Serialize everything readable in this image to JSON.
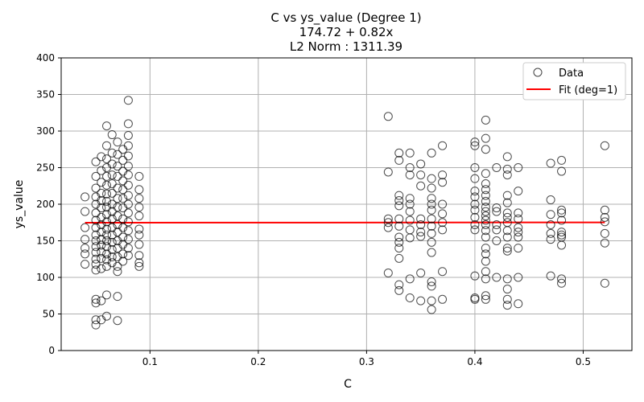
{
  "chart_data": {
    "type": "scatter",
    "title_lines": [
      "C vs ys_value (Degree 1)",
      "174.72 + 0.82x",
      "L2 Norm : 1311.39"
    ],
    "xlabel": "C",
    "ylabel": "ys_value",
    "xlim": [
      0.018,
      0.545
    ],
    "ylim": [
      0,
      400
    ],
    "xticks": [
      0.1,
      0.2,
      0.3,
      0.4,
      0.5
    ],
    "yticks": [
      0,
      50,
      100,
      150,
      200,
      250,
      300,
      350,
      400
    ],
    "grid": true,
    "legend_position": "upper-right",
    "colors": {
      "points": "#000000",
      "fit": "#ff0000",
      "grid": "#b0b0b0"
    },
    "series": [
      {
        "name": "Data",
        "kind": "scatter",
        "points": [
          [
            0.04,
            210
          ],
          [
            0.04,
            190
          ],
          [
            0.04,
            168
          ],
          [
            0.04,
            152
          ],
          [
            0.04,
            140
          ],
          [
            0.04,
            132
          ],
          [
            0.04,
            118
          ],
          [
            0.05,
            258
          ],
          [
            0.05,
            238
          ],
          [
            0.05,
            222
          ],
          [
            0.05,
            210
          ],
          [
            0.05,
            200
          ],
          [
            0.05,
            188
          ],
          [
            0.05,
            178
          ],
          [
            0.05,
            168
          ],
          [
            0.05,
            158
          ],
          [
            0.05,
            150
          ],
          [
            0.05,
            142
          ],
          [
            0.05,
            134
          ],
          [
            0.05,
            125
          ],
          [
            0.05,
            118
          ],
          [
            0.05,
            110
          ],
          [
            0.05,
            70
          ],
          [
            0.05,
            65
          ],
          [
            0.05,
            42
          ],
          [
            0.05,
            35
          ],
          [
            0.055,
            265
          ],
          [
            0.055,
            246
          ],
          [
            0.055,
            230
          ],
          [
            0.055,
            215
          ],
          [
            0.055,
            205
          ],
          [
            0.055,
            195
          ],
          [
            0.055,
            182
          ],
          [
            0.055,
            172
          ],
          [
            0.055,
            162
          ],
          [
            0.055,
            152
          ],
          [
            0.055,
            144
          ],
          [
            0.055,
            135
          ],
          [
            0.055,
            126
          ],
          [
            0.055,
            112
          ],
          [
            0.055,
            68
          ],
          [
            0.055,
            42
          ],
          [
            0.06,
            307
          ],
          [
            0.06,
            280
          ],
          [
            0.06,
            262
          ],
          [
            0.06,
            250
          ],
          [
            0.06,
            238
          ],
          [
            0.06,
            226
          ],
          [
            0.06,
            214
          ],
          [
            0.06,
            204
          ],
          [
            0.06,
            196
          ],
          [
            0.06,
            186
          ],
          [
            0.06,
            176
          ],
          [
            0.06,
            166
          ],
          [
            0.06,
            158
          ],
          [
            0.06,
            150
          ],
          [
            0.06,
            142
          ],
          [
            0.06,
            132
          ],
          [
            0.06,
            124
          ],
          [
            0.06,
            115
          ],
          [
            0.06,
            76
          ],
          [
            0.06,
            47
          ],
          [
            0.065,
            295
          ],
          [
            0.065,
            270
          ],
          [
            0.065,
            255
          ],
          [
            0.065,
            240
          ],
          [
            0.065,
            228
          ],
          [
            0.065,
            215
          ],
          [
            0.065,
            200
          ],
          [
            0.065,
            190
          ],
          [
            0.065,
            180
          ],
          [
            0.065,
            168
          ],
          [
            0.065,
            158
          ],
          [
            0.065,
            148
          ],
          [
            0.065,
            138
          ],
          [
            0.065,
            128
          ],
          [
            0.065,
            120
          ],
          [
            0.07,
            285
          ],
          [
            0.07,
            268
          ],
          [
            0.07,
            252
          ],
          [
            0.07,
            238
          ],
          [
            0.07,
            222
          ],
          [
            0.07,
            208
          ],
          [
            0.07,
            196
          ],
          [
            0.07,
            184
          ],
          [
            0.07,
            172
          ],
          [
            0.07,
            162
          ],
          [
            0.07,
            150
          ],
          [
            0.07,
            140
          ],
          [
            0.07,
            128
          ],
          [
            0.07,
            115
          ],
          [
            0.07,
            108
          ],
          [
            0.07,
            74
          ],
          [
            0.07,
            41
          ],
          [
            0.075,
            275
          ],
          [
            0.075,
            260
          ],
          [
            0.075,
            245
          ],
          [
            0.075,
            232
          ],
          [
            0.075,
            220
          ],
          [
            0.075,
            208
          ],
          [
            0.075,
            195
          ],
          [
            0.075,
            180
          ],
          [
            0.075,
            168
          ],
          [
            0.075,
            155
          ],
          [
            0.075,
            145
          ],
          [
            0.075,
            132
          ],
          [
            0.075,
            122
          ],
          [
            0.08,
            342
          ],
          [
            0.08,
            310
          ],
          [
            0.08,
            294
          ],
          [
            0.08,
            280
          ],
          [
            0.08,
            266
          ],
          [
            0.08,
            252
          ],
          [
            0.08,
            240
          ],
          [
            0.08,
            226
          ],
          [
            0.08,
            212
          ],
          [
            0.08,
            200
          ],
          [
            0.08,
            188
          ],
          [
            0.08,
            176
          ],
          [
            0.08,
            164
          ],
          [
            0.08,
            152
          ],
          [
            0.08,
            140
          ],
          [
            0.08,
            130
          ],
          [
            0.09,
            238
          ],
          [
            0.09,
            220
          ],
          [
            0.09,
            208
          ],
          [
            0.09,
            196
          ],
          [
            0.09,
            184
          ],
          [
            0.09,
            166
          ],
          [
            0.09,
            158
          ],
          [
            0.09,
            145
          ],
          [
            0.09,
            130
          ],
          [
            0.09,
            120
          ],
          [
            0.09,
            115
          ],
          [
            0.32,
            320
          ],
          [
            0.32,
            244
          ],
          [
            0.32,
            180
          ],
          [
            0.32,
            175
          ],
          [
            0.32,
            168
          ],
          [
            0.32,
            106
          ],
          [
            0.33,
            270
          ],
          [
            0.33,
            260
          ],
          [
            0.33,
            212
          ],
          [
            0.33,
            205
          ],
          [
            0.33,
            198
          ],
          [
            0.33,
            180
          ],
          [
            0.33,
            170
          ],
          [
            0.33,
            155
          ],
          [
            0.33,
            148
          ],
          [
            0.33,
            140
          ],
          [
            0.33,
            126
          ],
          [
            0.33,
            90
          ],
          [
            0.33,
            82
          ],
          [
            0.34,
            270
          ],
          [
            0.34,
            250
          ],
          [
            0.34,
            240
          ],
          [
            0.34,
            208
          ],
          [
            0.34,
            200
          ],
          [
            0.34,
            190
          ],
          [
            0.34,
            178
          ],
          [
            0.34,
            165
          ],
          [
            0.34,
            154
          ],
          [
            0.34,
            98
          ],
          [
            0.34,
            72
          ],
          [
            0.35,
            255
          ],
          [
            0.35,
            240
          ],
          [
            0.35,
            225
          ],
          [
            0.35,
            180
          ],
          [
            0.35,
            172
          ],
          [
            0.35,
            162
          ],
          [
            0.35,
            156
          ],
          [
            0.35,
            106
          ],
          [
            0.35,
            68
          ],
          [
            0.36,
            270
          ],
          [
            0.36,
            235
          ],
          [
            0.36,
            222
          ],
          [
            0.36,
            208
          ],
          [
            0.36,
            200
          ],
          [
            0.36,
            192
          ],
          [
            0.36,
            180
          ],
          [
            0.36,
            170
          ],
          [
            0.36,
            160
          ],
          [
            0.36,
            148
          ],
          [
            0.36,
            134
          ],
          [
            0.36,
            94
          ],
          [
            0.36,
            88
          ],
          [
            0.36,
            68
          ],
          [
            0.36,
            56
          ],
          [
            0.37,
            280
          ],
          [
            0.37,
            240
          ],
          [
            0.37,
            230
          ],
          [
            0.37,
            200
          ],
          [
            0.37,
            187
          ],
          [
            0.37,
            175
          ],
          [
            0.37,
            165
          ],
          [
            0.37,
            108
          ],
          [
            0.37,
            70
          ],
          [
            0.4,
            285
          ],
          [
            0.4,
            280
          ],
          [
            0.4,
            250
          ],
          [
            0.4,
            235
          ],
          [
            0.4,
            218
          ],
          [
            0.4,
            210
          ],
          [
            0.4,
            200
          ],
          [
            0.4,
            192
          ],
          [
            0.4,
            182
          ],
          [
            0.4,
            172
          ],
          [
            0.4,
            165
          ],
          [
            0.4,
            102
          ],
          [
            0.4,
            72
          ],
          [
            0.4,
            70
          ],
          [
            0.41,
            315
          ],
          [
            0.41,
            290
          ],
          [
            0.41,
            275
          ],
          [
            0.41,
            242
          ],
          [
            0.41,
            228
          ],
          [
            0.41,
            220
          ],
          [
            0.41,
            212
          ],
          [
            0.41,
            204
          ],
          [
            0.41,
            196
          ],
          [
            0.41,
            190
          ],
          [
            0.41,
            184
          ],
          [
            0.41,
            178
          ],
          [
            0.41,
            172
          ],
          [
            0.41,
            164
          ],
          [
            0.41,
            155
          ],
          [
            0.41,
            140
          ],
          [
            0.41,
            132
          ],
          [
            0.41,
            122
          ],
          [
            0.41,
            108
          ],
          [
            0.41,
            98
          ],
          [
            0.41,
            75
          ],
          [
            0.41,
            70
          ],
          [
            0.42,
            250
          ],
          [
            0.42,
            195
          ],
          [
            0.42,
            190
          ],
          [
            0.42,
            172
          ],
          [
            0.42,
            165
          ],
          [
            0.42,
            150
          ],
          [
            0.42,
            100
          ],
          [
            0.43,
            265
          ],
          [
            0.43,
            248
          ],
          [
            0.43,
            240
          ],
          [
            0.43,
            212
          ],
          [
            0.43,
            202
          ],
          [
            0.43,
            188
          ],
          [
            0.43,
            182
          ],
          [
            0.43,
            175
          ],
          [
            0.43,
            164
          ],
          [
            0.43,
            155
          ],
          [
            0.43,
            140
          ],
          [
            0.43,
            136
          ],
          [
            0.43,
            98
          ],
          [
            0.43,
            84
          ],
          [
            0.43,
            70
          ],
          [
            0.43,
            62
          ],
          [
            0.44,
            250
          ],
          [
            0.44,
            218
          ],
          [
            0.44,
            188
          ],
          [
            0.44,
            180
          ],
          [
            0.44,
            168
          ],
          [
            0.44,
            162
          ],
          [
            0.44,
            155
          ],
          [
            0.44,
            140
          ],
          [
            0.44,
            100
          ],
          [
            0.44,
            64
          ],
          [
            0.47,
            256
          ],
          [
            0.47,
            206
          ],
          [
            0.47,
            186
          ],
          [
            0.47,
            172
          ],
          [
            0.47,
            160
          ],
          [
            0.47,
            152
          ],
          [
            0.47,
            102
          ],
          [
            0.48,
            260
          ],
          [
            0.48,
            245
          ],
          [
            0.48,
            192
          ],
          [
            0.48,
            188
          ],
          [
            0.48,
            178
          ],
          [
            0.48,
            162
          ],
          [
            0.48,
            158
          ],
          [
            0.48,
            155
          ],
          [
            0.48,
            144
          ],
          [
            0.48,
            98
          ],
          [
            0.48,
            92
          ],
          [
            0.52,
            280
          ],
          [
            0.52,
            192
          ],
          [
            0.52,
            182
          ],
          [
            0.52,
            176
          ],
          [
            0.52,
            160
          ],
          [
            0.52,
            147
          ],
          [
            0.52,
            92
          ]
        ]
      },
      {
        "name": "Fit (deg=1)",
        "kind": "line",
        "intercept": 174.72,
        "slope": 0.82,
        "x": [
          0.04,
          0.52
        ]
      }
    ]
  }
}
